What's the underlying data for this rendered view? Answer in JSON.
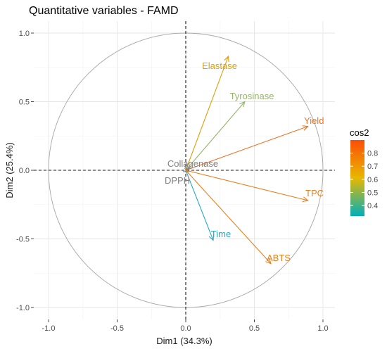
{
  "chart_data": {
    "type": "scatter",
    "title": "Quantitative variables - FAMD",
    "xlabel": "Dim1 (34.3%)",
    "ylabel": "Dim2 (25.4%)",
    "xlim": [
      -1.0,
      1.0
    ],
    "ylim": [
      -1.0,
      1.0
    ],
    "xticks": [
      "-1.0",
      "-0.5",
      "0.0",
      "0.5",
      "1.0"
    ],
    "yticks": [
      "-1.0",
      "-0.5",
      "0.0",
      "0.5",
      "1.0"
    ],
    "grid": true,
    "legend": {
      "title": "cos2",
      "placement": "right",
      "ticks": [
        "0.4",
        "0.5",
        "0.6",
        "0.7",
        "0.8"
      ],
      "range": [
        0.32,
        0.9
      ],
      "colors": [
        "#00AFBB",
        "#E7B800",
        "#FC4E07"
      ]
    },
    "variables": [
      {
        "name": "Elastase",
        "x": 0.31,
        "y": 0.83,
        "cos2": 0.78,
        "color": "#E09E08"
      },
      {
        "name": "Tyrosinase",
        "x": 0.43,
        "y": 0.5,
        "cos2": 0.43,
        "color": "#96B46A"
      },
      {
        "name": "Yield",
        "x": 0.89,
        "y": 0.32,
        "cos2": 0.89,
        "color": "#EE7222"
      },
      {
        "name": "Collagenase",
        "x": 0.03,
        "y": 0.02,
        "cos2": 0.01,
        "color": "#808080"
      },
      {
        "name": "DPPH",
        "x": 0.02,
        "y": -0.01,
        "cos2": 0.01,
        "color": "#808080"
      },
      {
        "name": "TPC",
        "x": 0.89,
        "y": -0.22,
        "cos2": 0.84,
        "color": "#EA7E1C"
      },
      {
        "name": "Time",
        "x": 0.2,
        "y": -0.51,
        "cos2": 0.3,
        "color": "#26A9C4"
      },
      {
        "name": "ABTS",
        "x": 0.62,
        "y": -0.68,
        "cos2": 0.85,
        "color": "#E98019"
      }
    ]
  }
}
